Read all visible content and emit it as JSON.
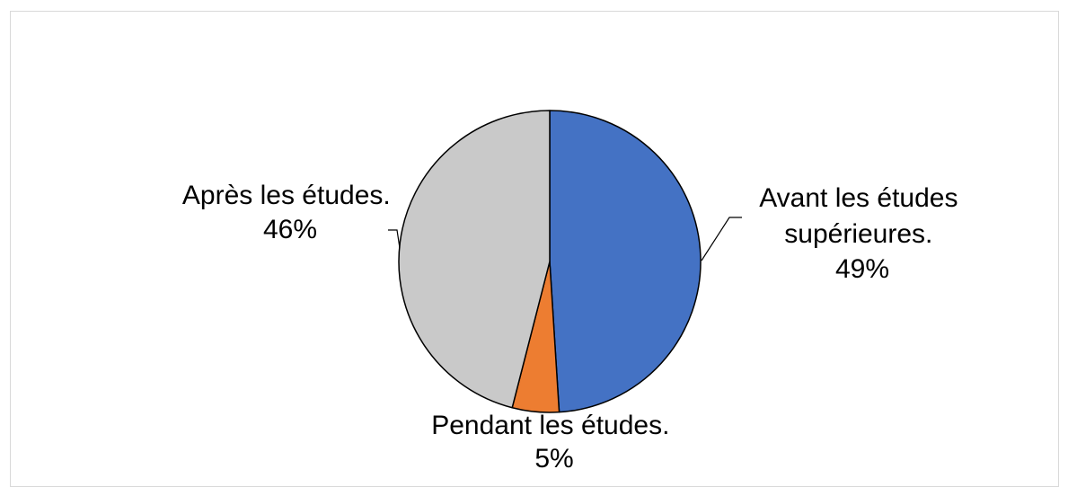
{
  "chart_data": {
    "type": "pie",
    "title": "",
    "legend": "none",
    "slices": [
      {
        "label_lines": [
          "Avant les études",
          "supérieures."
        ],
        "percent_label": "49%",
        "value": 49,
        "color": "#4472C4"
      },
      {
        "label_lines": [
          "Pendant les études."
        ],
        "percent_label": "5%",
        "value": 5,
        "color": "#ED7D31"
      },
      {
        "label_lines": [
          "Après les études."
        ],
        "percent_label": "46%",
        "value": 46,
        "color": "#C9C9C9"
      }
    ]
  }
}
